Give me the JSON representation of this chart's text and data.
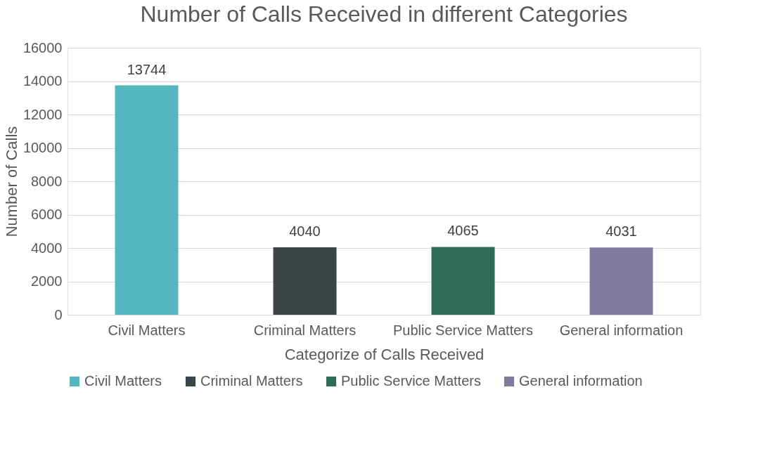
{
  "chart_data": {
    "type": "bar",
    "title": "Number of Calls Received in different Categories",
    "xlabel": "Categorize of Calls Received",
    "ylabel": "Number of Calls",
    "categories": [
      "Civil Matters",
      "Criminal Matters",
      "Public Service Matters",
      "General information"
    ],
    "stacked": true,
    "series": [
      {
        "name": "Civil Matters",
        "color": "#56b6c0",
        "values": [
          13744,
          null,
          null,
          null
        ]
      },
      {
        "name": "Criminal Matters",
        "color": "#3b4548",
        "values": [
          null,
          4040,
          null,
          null
        ]
      },
      {
        "name": "Public Service Matters",
        "color": "#2e6b58",
        "values": [
          null,
          null,
          4065,
          null
        ]
      },
      {
        "name": "General information",
        "color": "#807b9c",
        "values": [
          null,
          null,
          null,
          4031
        ]
      }
    ],
    "ylim": [
      0,
      16000
    ],
    "yticks": [
      0,
      2000,
      4000,
      6000,
      8000,
      10000,
      12000,
      14000,
      16000
    ],
    "grid": "y",
    "legend": "bottom",
    "data_labels": true
  }
}
